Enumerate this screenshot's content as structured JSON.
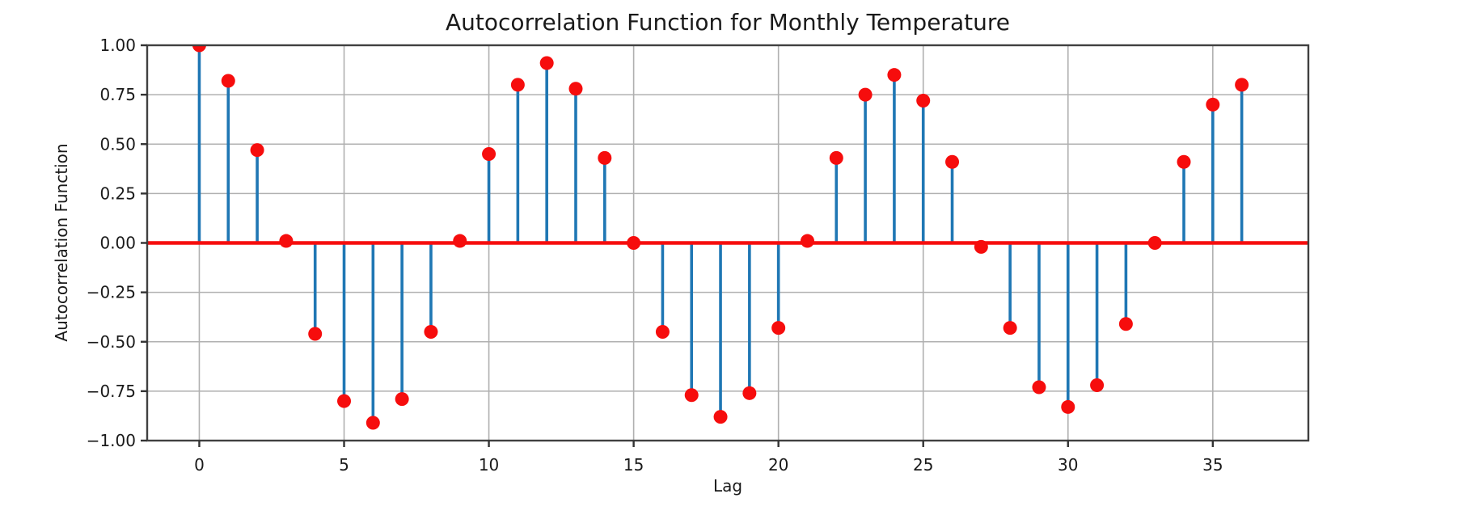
{
  "figure": {
    "background": "#ffffff"
  },
  "chart_data": {
    "type": "stem",
    "title": "Autocorrelation Function for Monthly Temperature",
    "xlabel": "Lag",
    "ylabel": "Autocorrelation Function",
    "x": [
      0,
      1,
      2,
      3,
      4,
      5,
      6,
      7,
      8,
      9,
      10,
      11,
      12,
      13,
      14,
      15,
      16,
      17,
      18,
      19,
      20,
      21,
      22,
      23,
      24,
      25,
      26,
      27,
      28,
      29,
      30,
      31,
      32,
      33,
      34,
      35,
      36
    ],
    "values": [
      1.0,
      0.82,
      0.47,
      0.01,
      -0.46,
      -0.8,
      -0.91,
      -0.79,
      -0.45,
      0.01,
      0.45,
      0.8,
      0.91,
      0.78,
      0.43,
      0.0,
      -0.45,
      -0.77,
      -0.88,
      -0.76,
      -0.43,
      0.01,
      0.43,
      0.75,
      0.85,
      0.72,
      0.41,
      -0.02,
      -0.43,
      -0.73,
      -0.83,
      -0.72,
      -0.41,
      0.0,
      0.41,
      0.7,
      0.8
    ],
    "baseline_value": 0,
    "xlim": [
      -1.8,
      38.3
    ],
    "ylim": [
      -1.0,
      1.0
    ],
    "xticks": [
      0,
      5,
      10,
      15,
      20,
      25,
      30,
      35
    ],
    "xtick_labels": [
      "0",
      "5",
      "10",
      "15",
      "20",
      "25",
      "30",
      "35"
    ],
    "ytick_values": [
      1.0,
      0.75,
      0.5,
      0.25,
      0.0,
      -0.25,
      -0.5,
      -0.75,
      -1.0
    ],
    "ytick_labels": [
      "1.00",
      "0.75",
      "0.50",
      "0.25",
      "0.00",
      "−0.25",
      "−0.50",
      "−0.75",
      "−1.00"
    ],
    "grid": true,
    "legend_position": "none",
    "colors": {
      "stem": "#1f77b4",
      "marker": "#f60d0d",
      "baseline": "#f60d0d",
      "grid": "#b0b0b0",
      "frame": "#404040",
      "tick": "#333333",
      "text": "#1a1a1a",
      "background": "#ffffff"
    }
  }
}
